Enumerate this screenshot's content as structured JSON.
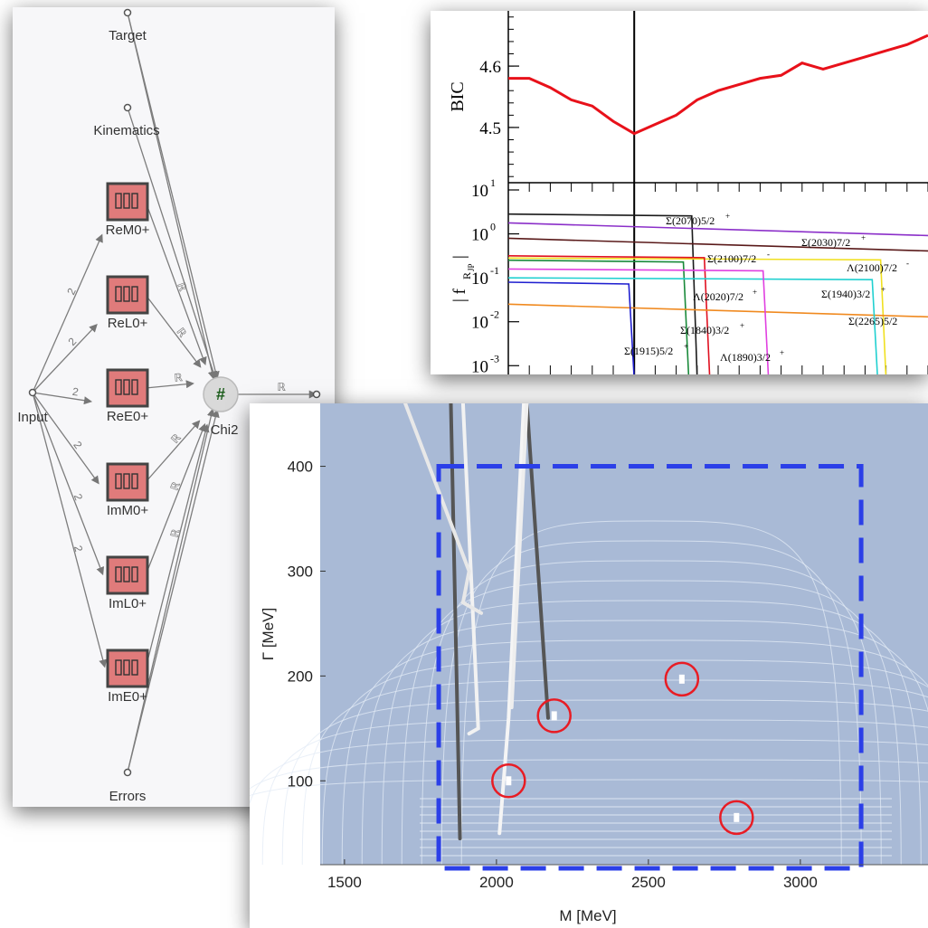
{
  "network": {
    "nodes": {
      "target": "Target",
      "kinematics": "Kinematics",
      "input": "Input",
      "chi2": "Chi2",
      "errors": "Errors",
      "chi2_symbol": "#"
    },
    "blocks": [
      "ReM0+",
      "ReL0+",
      "ReE0+",
      "ImM0+",
      "ImL0+",
      "ImE0+"
    ],
    "edge_dim_label": "2",
    "edge_real_label": "ℝ",
    "colors": {
      "block_fill": "#e07b7b",
      "block_border": "#444444",
      "chi2_symbol": "#1a5c1a"
    }
  },
  "chart_data": [
    {
      "type": "line",
      "panel": "top",
      "ylabel": "BIC",
      "ylim": [
        4.41,
        4.69
      ],
      "yticks": [
        "4.5",
        "4.6"
      ],
      "x_index": [
        0,
        1,
        2,
        3,
        4,
        5,
        6,
        7,
        8,
        9,
        10,
        11,
        12,
        13,
        14,
        15,
        16,
        17,
        18,
        19,
        20
      ],
      "series": [
        {
          "values": [
            4.58,
            4.58,
            4.565,
            4.545,
            4.535,
            4.51,
            4.49,
            4.505,
            4.52,
            4.545,
            4.56,
            4.57,
            4.58,
            4.585,
            4.605,
            4.595,
            4.605,
            4.615,
            4.625,
            4.635,
            4.65
          ],
          "color": "#e8111a"
        }
      ],
      "vline_index": 6
    },
    {
      "type": "line",
      "panel": "bottom",
      "ylabel": "| f",
      "ylabel_sub": "R",
      "ylabel_sup": "JP",
      "yscale": "log",
      "ytick_bases": [
        "10",
        "10",
        "10",
        "10",
        "10"
      ],
      "ytick_exps": [
        "1",
        "0",
        "-1",
        "-2",
        "-3"
      ],
      "labels": [
        {
          "base": "Σ(2070)5/2",
          "sup": "+"
        },
        {
          "base": "Σ(2030)7/2",
          "sup": "+"
        },
        {
          "base": "Σ(2100)7/2",
          "sup": "-"
        },
        {
          "base": "Λ(2100)7/2",
          "sup": "-"
        },
        {
          "base": "Λ(2020)7/2",
          "sup": "+"
        },
        {
          "base": "Σ(1940)3/2",
          "sup": "+"
        },
        {
          "base": "Σ(2265)5/2",
          "sup": ""
        },
        {
          "base": "Σ(1840)3/2",
          "sup": "+"
        },
        {
          "base": "Σ(1915)5/2",
          "sup": "+"
        },
        {
          "base": "Λ(1890)3/2",
          "sup": "+"
        }
      ],
      "series": [
        {
          "level": 0.45,
          "drop": 0.45,
          "color": "#1a1a1a"
        },
        {
          "level": 0.25,
          "drop": 1.0,
          "color": "#8b2fc9"
        },
        {
          "level": -0.1,
          "drop": 1.0,
          "color": "#5a1a1a"
        },
        {
          "level": -0.55,
          "drop": 0.9,
          "color": "#f0e020"
        },
        {
          "level": -0.5,
          "drop": 0.48,
          "color": "#e01020"
        },
        {
          "level": -0.6,
          "drop": 0.43,
          "color": "#1a8a3a"
        },
        {
          "level": -1.6,
          "drop": 1.0,
          "color": "#f08a20"
        },
        {
          "level": -1.0,
          "drop": 0.88,
          "color": "#20d0d0"
        },
        {
          "level": -0.8,
          "drop": 0.62,
          "color": "#e040e0"
        },
        {
          "level": -1.1,
          "drop": 0.3,
          "color": "#2020d0"
        }
      ]
    },
    {
      "type": "scatter",
      "panel": "pole",
      "xlabel": "M [MeV]",
      "ylabel": "Γ [MeV]",
      "xlim": [
        1420,
        3420
      ],
      "ylim": [
        20,
        460
      ],
      "xticks": [
        1500,
        2000,
        2500,
        3000
      ],
      "yticks": [
        100,
        200,
        300,
        400
      ],
      "region": {
        "x": [
          1810,
          3200
        ],
        "y": [
          20,
          400
        ]
      },
      "points": [
        {
          "x": 2040,
          "y": 100
        },
        {
          "x": 2190,
          "y": 162
        },
        {
          "x": 2610,
          "y": 197
        },
        {
          "x": 2790,
          "y": 65
        }
      ],
      "colors": {
        "background": "#a9bad6",
        "region": "#2b3fe8",
        "circle": "#e81c24"
      }
    }
  ]
}
